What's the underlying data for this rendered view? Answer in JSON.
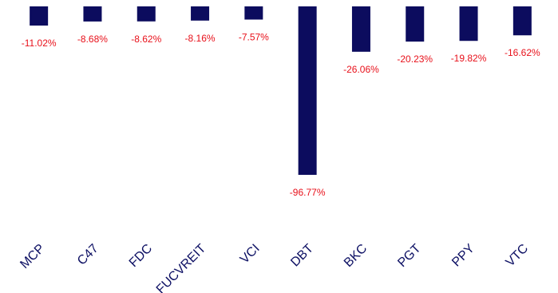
{
  "chart_data": {
    "type": "bar",
    "categories": [
      "MCP",
      "C47",
      "FDC",
      "FUCVREIT",
      "VCI",
      "DBT",
      "BKC",
      "PGT",
      "PPY",
      "VTC"
    ],
    "values": [
      -11.02,
      -8.68,
      -8.62,
      -8.16,
      -7.57,
      -96.77,
      -26.06,
      -20.23,
      -19.82,
      -16.62
    ],
    "value_labels": [
      "-11.02%",
      "-8.68%",
      "-8.62%",
      "-8.16%",
      "-7.57%",
      "-96.77%",
      "-26.06%",
      "-20.23%",
      "-19.82%",
      "-16.62%"
    ],
    "color": "#0c0c5e",
    "label_color": "#e8101a",
    "category_color": "#0c0f63"
  }
}
